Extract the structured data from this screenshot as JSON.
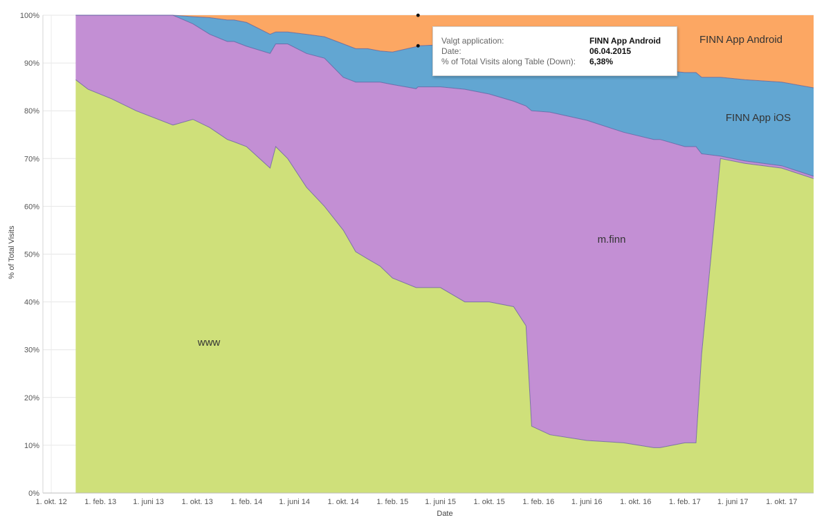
{
  "chart_data": {
    "type": "area",
    "stacked": true,
    "normalized_percent": true,
    "xlabel": "Date",
    "ylabel": "% of Total Visits",
    "ylim": [
      0,
      100
    ],
    "y_ticks": [
      "0%",
      "10%",
      "20%",
      "30%",
      "40%",
      "50%",
      "60%",
      "70%",
      "80%",
      "90%",
      "100%"
    ],
    "x_ticks": [
      "1. okt. 12",
      "1. feb. 13",
      "1. juni 13",
      "1. okt. 13",
      "1. feb. 14",
      "1. juni 14",
      "1. okt. 14",
      "1. feb. 15",
      "1. juni 15",
      "1. okt. 15",
      "1. feb. 16",
      "1. juni 16",
      "1. okt. 16",
      "1. feb. 17",
      "1. juni 17",
      "1. okt. 17"
    ],
    "x_tick_dates": [
      "2012-10-01",
      "2013-02-01",
      "2013-06-01",
      "2013-10-01",
      "2014-02-01",
      "2014-06-01",
      "2014-10-01",
      "2015-02-01",
      "2015-06-01",
      "2015-10-01",
      "2016-02-01",
      "2016-06-01",
      "2016-10-01",
      "2017-02-01",
      "2017-06-01",
      "2017-10-01"
    ],
    "xlim": [
      "2012-09-10",
      "2017-12-20"
    ],
    "grid": true,
    "dates": [
      "2012-12-01",
      "2013-01-01",
      "2013-03-01",
      "2013-05-01",
      "2013-08-01",
      "2013-09-20",
      "2013-11-01",
      "2013-12-15",
      "2014-01-01",
      "2014-02-01",
      "2014-04-01",
      "2014-04-15",
      "2014-05-15",
      "2014-07-01",
      "2014-08-15",
      "2014-10-01",
      "2014-11-01",
      "2014-12-01",
      "2015-01-01",
      "2015-02-01",
      "2015-04-01",
      "2015-04-06",
      "2015-06-01",
      "2015-08-01",
      "2015-10-01",
      "2015-12-01",
      "2016-01-01",
      "2016-01-15",
      "2016-03-01",
      "2016-06-01",
      "2016-09-01",
      "2016-11-15",
      "2016-12-01",
      "2017-02-01",
      "2017-03-01",
      "2017-03-15",
      "2017-05-01",
      "2017-07-01",
      "2017-10-01",
      "2017-12-20"
    ],
    "series": [
      {
        "name": "www",
        "color": "#cfe07a",
        "values": [
          86.5,
          84.5,
          82.5,
          80.0,
          77.0,
          78.2,
          76.5,
          74.0,
          73.5,
          72.5,
          68.0,
          72.5,
          70.0,
          64.0,
          60.0,
          55.0,
          50.5,
          49.0,
          47.5,
          45.0,
          43.0,
          43.0,
          43.0,
          40.0,
          40.0,
          39.0,
          35.0,
          14.0,
          12.2,
          11.0,
          10.5,
          9.5,
          9.5,
          10.5,
          10.5,
          29.0,
          70.0,
          69.0,
          68.0,
          65.8
        ]
      },
      {
        "name": "m.finn",
        "color": "#c38fd4",
        "values": [
          13.5,
          15.5,
          17.5,
          20.0,
          23.0,
          20.0,
          19.5,
          20.5,
          21.0,
          21.0,
          24.0,
          21.5,
          24.0,
          28.0,
          31.0,
          32.0,
          35.5,
          37.0,
          38.5,
          40.5,
          41.62,
          42.0,
          42.0,
          44.5,
          43.5,
          43.0,
          46.0,
          66.0,
          67.5,
          67.0,
          65.0,
          64.5,
          64.5,
          62.0,
          62.0,
          42.0,
          0.5,
          0.5,
          0.5,
          0.5
        ]
      },
      {
        "name": "FINN App iOS",
        "color": "#62a6d2",
        "values": [
          0.0,
          0.0,
          0.0,
          0.0,
          0.0,
          1.5,
          3.5,
          4.5,
          4.5,
          5.0,
          4.0,
          2.5,
          2.5,
          4.0,
          4.5,
          7.0,
          7.0,
          7.0,
          6.5,
          6.8,
          8.8,
          8.6,
          8.8,
          9.5,
          10.0,
          11.0,
          11.0,
          12.0,
          12.5,
          13.5,
          14.0,
          14.5,
          14.5,
          15.5,
          15.5,
          16.0,
          16.5,
          17.0,
          17.5,
          18.5
        ]
      },
      {
        "name": "FINN App Android",
        "color": "#fca763",
        "values": [
          0.0,
          0.0,
          0.0,
          0.0,
          0.0,
          0.3,
          0.5,
          1.0,
          1.0,
          1.5,
          4.0,
          3.5,
          3.5,
          4.0,
          4.5,
          6.0,
          7.0,
          7.0,
          7.5,
          7.7,
          6.58,
          6.38,
          6.2,
          6.0,
          6.5,
          7.0,
          8.0,
          8.0,
          7.8,
          8.5,
          10.5,
          11.5,
          11.5,
          12.0,
          12.0,
          13.0,
          13.0,
          13.5,
          14.0,
          15.2
        ]
      }
    ],
    "area_labels": [
      "FINN App Android",
      "FINN App iOS",
      "m.finn",
      "www"
    ],
    "tooltip": {
      "rows": [
        {
          "key": "Valgt application:",
          "value": "FINN App Android"
        },
        {
          "key": "Date:",
          "value": "06.04.2015"
        },
        {
          "key": "% of Total Visits along Table (Down):",
          "value": "6,38%"
        }
      ],
      "highlight_date": "2015-04-06"
    }
  }
}
